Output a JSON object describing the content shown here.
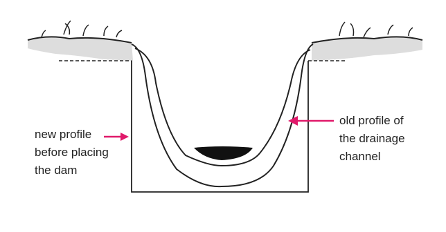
{
  "annotations": [
    {
      "lines": [
        "new profile",
        "before placing",
        "the dam"
      ]
    },
    {
      "lines": [
        "old profile of",
        "the drainage",
        "channel"
      ]
    }
  ]
}
